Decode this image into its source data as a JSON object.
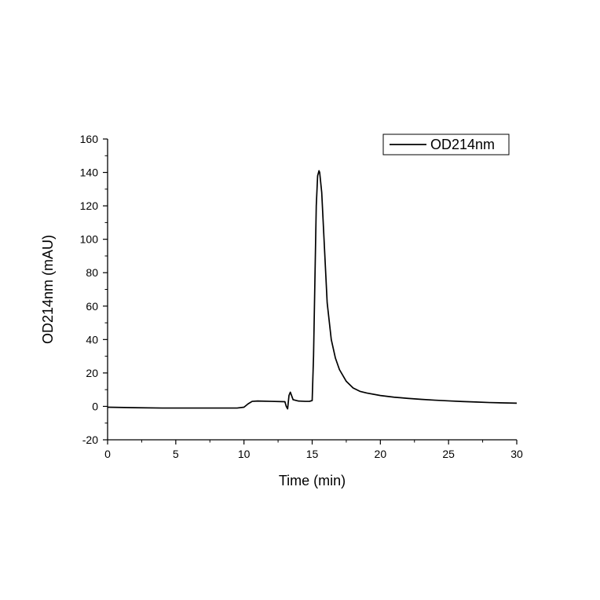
{
  "chart_data": {
    "type": "line",
    "title": "",
    "xlabel": "Time (min)",
    "ylabel": "OD214nm (mAU)",
    "xlim": [
      0,
      30
    ],
    "ylim": [
      -20,
      160
    ],
    "x_ticks": [
      0,
      5,
      10,
      15,
      20,
      25,
      30
    ],
    "y_ticks": [
      -20,
      0,
      20,
      40,
      60,
      80,
      100,
      120,
      140,
      160
    ],
    "x_minor_step": 2.5,
    "y_minor_step": 10,
    "grid": false,
    "legend": {
      "position": "top-right",
      "entries": [
        "OD214nm"
      ]
    },
    "series": [
      {
        "name": "OD214nm",
        "color": "#000000",
        "x": [
          0,
          2,
          4,
          6,
          8,
          9.5,
          10,
          10.3,
          10.6,
          11,
          12,
          13,
          13.1,
          13.2,
          13.3,
          13.4,
          13.6,
          14,
          14.5,
          14.8,
          15,
          15.1,
          15.2,
          15.3,
          15.4,
          15.5,
          15.55,
          15.7,
          15.9,
          16.1,
          16.4,
          16.7,
          17,
          17.5,
          18,
          18.5,
          19,
          20,
          21,
          22,
          23,
          24,
          25,
          26,
          27,
          28,
          29,
          30
        ],
        "y": [
          -0.5,
          -0.8,
          -1,
          -1,
          -1,
          -1,
          -0.5,
          1.5,
          3,
          3.2,
          3,
          2.8,
          0,
          -1.5,
          6.5,
          8.5,
          4,
          3.2,
          3,
          3,
          3.5,
          30,
          75,
          120,
          138,
          141,
          140,
          128,
          95,
          62,
          40,
          29,
          22,
          15,
          11,
          9,
          8,
          6.5,
          5.5,
          4.8,
          4.2,
          3.7,
          3.3,
          2.9,
          2.6,
          2.3,
          2.1,
          1.9
        ]
      }
    ]
  }
}
